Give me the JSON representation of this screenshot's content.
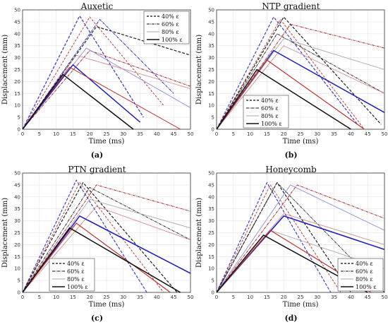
{
  "chart_data": [
    {
      "panel_label": "(a)",
      "type": "line",
      "title": "Auxetic",
      "xlabel": "Time (ms)",
      "ylabel": "Displacement (mm)",
      "xlim": [
        0,
        50
      ],
      "ylim": [
        0,
        50
      ],
      "grid": true,
      "legend_position": "top-right",
      "legend": [
        "40% ε_f",
        "60% ε_f",
        "80% ε_f",
        "100% ε_f"
      ],
      "series": [
        {
          "name": "40% ε_f",
          "color": "#4040d0",
          "dash": "4,2",
          "width": 1.3,
          "x": [
            0,
            17,
            36
          ],
          "y": [
            0,
            47.5,
            5
          ]
        },
        {
          "name": "40% ε_f",
          "color": "#c04040",
          "dash": "3,2",
          "width": 1.0,
          "x": [
            0,
            20,
            42
          ],
          "y": [
            0,
            47,
            10
          ]
        },
        {
          "name": "40% ε_f",
          "color": "#222222",
          "dash": "4,2",
          "width": 1.2,
          "x": [
            0,
            22,
            50
          ],
          "y": [
            0,
            43,
            31
          ]
        },
        {
          "name": "60% ε_f",
          "color": "#b03030",
          "dash": "4,1,1,1",
          "width": 1.0,
          "x": [
            0,
            20,
            50
          ],
          "y": [
            0,
            33,
            18
          ]
        },
        {
          "name": "60% ε_f",
          "color": "#3030c0",
          "dash": "4,1,1,1",
          "width": 1.0,
          "x": [
            0,
            23,
            45
          ],
          "y": [
            0,
            46,
            15
          ]
        },
        {
          "name": "80% ε_f",
          "color": "#8080e0",
          "dash": "",
          "width": 0.8,
          "x": [
            0,
            19,
            50
          ],
          "y": [
            0,
            34,
            9
          ]
        },
        {
          "name": "80% ε_f",
          "color": "#d08080",
          "dash": "",
          "width": 0.8,
          "x": [
            0,
            16,
            50
          ],
          "y": [
            0,
            31,
            17
          ]
        },
        {
          "name": "100% ε_f",
          "color": "#2020c0",
          "dash": "",
          "width": 1.5,
          "x": [
            0,
            15,
            35
          ],
          "y": [
            0,
            27,
            3
          ]
        },
        {
          "name": "100% ε_f",
          "color": "#c03030",
          "dash": "",
          "width": 1.0,
          "x": [
            0,
            14,
            47
          ],
          "y": [
            0,
            26,
            0
          ]
        },
        {
          "name": "100% ε_f",
          "color": "#111111",
          "dash": "",
          "width": 1.5,
          "x": [
            0,
            12,
            33
          ],
          "y": [
            0,
            23,
            0
          ]
        }
      ]
    },
    {
      "panel_label": "(b)",
      "type": "line",
      "title": "NTP gradient",
      "xlabel": "Time (ms)",
      "ylabel": "Displacement (mm)",
      "xlim": [
        0,
        50
      ],
      "ylim": [
        0,
        50
      ],
      "grid": true,
      "legend_position": "bottom-left",
      "legend": [
        "40% ε_f",
        "60% ε_f",
        "80% ε_f",
        "100% ε_f"
      ],
      "series": [
        {
          "name": "40% ε_f",
          "color": "#4040d0",
          "dash": "4,2",
          "width": 1.2,
          "x": [
            0,
            17,
            42
          ],
          "y": [
            0,
            47,
            2
          ]
        },
        {
          "name": "40% ε_f",
          "color": "#c04040",
          "dash": "3,2",
          "width": 1.0,
          "x": [
            0,
            19,
            44
          ],
          "y": [
            0,
            46,
            0
          ]
        },
        {
          "name": "40% ε_f",
          "color": "#222222",
          "dash": "4,2",
          "width": 1.2,
          "x": [
            0,
            20,
            49
          ],
          "y": [
            0,
            47,
            2
          ]
        },
        {
          "name": "60% ε_f",
          "color": "#b03030",
          "dash": "4,1,1,1",
          "width": 1.0,
          "x": [
            0,
            22,
            50
          ],
          "y": [
            0,
            44,
            34
          ]
        },
        {
          "name": "60% ε_f",
          "color": "#333333",
          "dash": "4,1,1,1",
          "width": 1.0,
          "x": [
            0,
            18,
            50
          ],
          "y": [
            0,
            40,
            15
          ]
        },
        {
          "name": "80% ε_f",
          "color": "#a0a0a0",
          "dash": "",
          "width": 0.8,
          "x": [
            0,
            20,
            50
          ],
          "y": [
            0,
            38,
            25
          ]
        },
        {
          "name": "80% ε_f",
          "color": "#d08080",
          "dash": "",
          "width": 0.8,
          "x": [
            0,
            20,
            50
          ],
          "y": [
            0,
            35,
            15
          ]
        },
        {
          "name": "100% ε_f",
          "color": "#2020c0",
          "dash": "",
          "width": 1.5,
          "x": [
            0,
            17,
            50
          ],
          "y": [
            0,
            33,
            7
          ]
        },
        {
          "name": "100% ε_f",
          "color": "#c03030",
          "dash": "",
          "width": 1.2,
          "x": [
            0,
            15,
            44
          ],
          "y": [
            0,
            29,
            0
          ]
        },
        {
          "name": "100% ε_f",
          "color": "#111111",
          "dash": "",
          "width": 1.5,
          "x": [
            0,
            12,
            40
          ],
          "y": [
            0,
            25,
            0
          ]
        }
      ]
    },
    {
      "panel_label": "(c)",
      "type": "line",
      "title": "PTN gradient",
      "xlabel": "Time (ms)",
      "ylabel": "Displacement (mm)",
      "xlim": [
        0,
        50
      ],
      "ylim": [
        0,
        50
      ],
      "grid": true,
      "legend_position": "bottom-left",
      "legend": [
        "40% ε_f",
        "60% ε_f",
        "80% ε_f",
        "100% ε_f"
      ],
      "series": [
        {
          "name": "40% ε_f",
          "color": "#4040d0",
          "dash": "4,2",
          "width": 1.2,
          "x": [
            0,
            16,
            37
          ],
          "y": [
            0,
            47,
            0
          ]
        },
        {
          "name": "40% ε_f",
          "color": "#c04040",
          "dash": "3,2",
          "width": 1.0,
          "x": [
            0,
            17,
            42
          ],
          "y": [
            0,
            46,
            0
          ]
        },
        {
          "name": "40% ε_f",
          "color": "#222222",
          "dash": "4,2",
          "width": 1.2,
          "x": [
            0,
            18,
            46
          ],
          "y": [
            0,
            46,
            0
          ]
        },
        {
          "name": "60% ε_f",
          "color": "#b03030",
          "dash": "4,1,1,1",
          "width": 1.0,
          "x": [
            0,
            22,
            50
          ],
          "y": [
            0,
            45,
            34
          ]
        },
        {
          "name": "60% ε_f",
          "color": "#333333",
          "dash": "4,1,1,1",
          "width": 1.0,
          "x": [
            0,
            20,
            50
          ],
          "y": [
            0,
            44,
            22
          ]
        },
        {
          "name": "80% ε_f",
          "color": "#a0a0a0",
          "dash": "",
          "width": 0.8,
          "x": [
            0,
            20,
            50
          ],
          "y": [
            0,
            39,
            27
          ]
        },
        {
          "name": "80% ε_f",
          "color": "#d08080",
          "dash": "",
          "width": 0.8,
          "x": [
            0,
            22,
            50
          ],
          "y": [
            0,
            36,
            22
          ]
        },
        {
          "name": "100% ε_f",
          "color": "#2020c0",
          "dash": "",
          "width": 1.6,
          "x": [
            0,
            17,
            50
          ],
          "y": [
            0,
            32,
            8
          ]
        },
        {
          "name": "100% ε_f",
          "color": "#c03030",
          "dash": "",
          "width": 1.2,
          "x": [
            0,
            16,
            44
          ],
          "y": [
            0,
            29,
            0
          ]
        },
        {
          "name": "100% ε_f",
          "color": "#111111",
          "dash": "",
          "width": 1.5,
          "x": [
            0,
            14,
            47
          ],
          "y": [
            0,
            27,
            0
          ]
        }
      ]
    },
    {
      "panel_label": "(d)",
      "type": "line",
      "title": "Honeycomb",
      "xlabel": "Time (ms)",
      "ylabel": "Displacement (mm)",
      "xlim": [
        0,
        50
      ],
      "ylim": [
        0,
        50
      ],
      "grid": true,
      "legend_position": "bottom-right",
      "legend": [
        "40% ε_f",
        "60% ε_f",
        "80% ε_f",
        "100% ε_f"
      ],
      "series": [
        {
          "name": "40% ε_f",
          "color": "#4040d0",
          "dash": "4,2",
          "width": 1.2,
          "x": [
            0,
            15,
            34
          ],
          "y": [
            0,
            46,
            0
          ]
        },
        {
          "name": "40% ε_f",
          "color": "#c04040",
          "dash": "3,2",
          "width": 1.0,
          "x": [
            0,
            16,
            37
          ],
          "y": [
            0,
            45,
            0
          ]
        },
        {
          "name": "40% ε_f",
          "color": "#222222",
          "dash": "4,2",
          "width": 1.2,
          "x": [
            0,
            18,
            40
          ],
          "y": [
            0,
            46,
            0
          ]
        },
        {
          "name": "60% ε_f",
          "color": "#b03030",
          "dash": "4,1,1,1",
          "width": 1.0,
          "x": [
            0,
            24,
            50
          ],
          "y": [
            0,
            45,
            31
          ]
        },
        {
          "name": "60% ε_f",
          "color": "#333333",
          "dash": "4,1,1,1",
          "width": 1.0,
          "x": [
            0,
            18,
            50
          ],
          "y": [
            0,
            46,
            0
          ]
        },
        {
          "name": "80% ε_f",
          "color": "#8080e0",
          "dash": "",
          "width": 0.8,
          "x": [
            0,
            22,
            50
          ],
          "y": [
            0,
            45,
            26
          ]
        },
        {
          "name": "80% ε_f",
          "color": "#d08080",
          "dash": "",
          "width": 0.8,
          "x": [
            0,
            20,
            50
          ],
          "y": [
            0,
            33,
            20
          ]
        },
        {
          "name": "80% ε_f",
          "color": "#a0a0a0",
          "dash": "",
          "width": 0.8,
          "x": [
            0,
            16,
            50
          ],
          "y": [
            0,
            26,
            10
          ]
        },
        {
          "name": "100% ε_f",
          "color": "#2020c0",
          "dash": "",
          "width": 1.6,
          "x": [
            0,
            20,
            50
          ],
          "y": [
            0,
            32,
            18
          ]
        },
        {
          "name": "100% ε_f",
          "color": "#c03030",
          "dash": "",
          "width": 1.2,
          "x": [
            0,
            16,
            46
          ],
          "y": [
            0,
            26,
            0
          ]
        },
        {
          "name": "100% ε_f",
          "color": "#111111",
          "dash": "",
          "width": 1.5,
          "x": [
            0,
            14,
            45
          ],
          "y": [
            0,
            24,
            0
          ]
        }
      ]
    }
  ]
}
